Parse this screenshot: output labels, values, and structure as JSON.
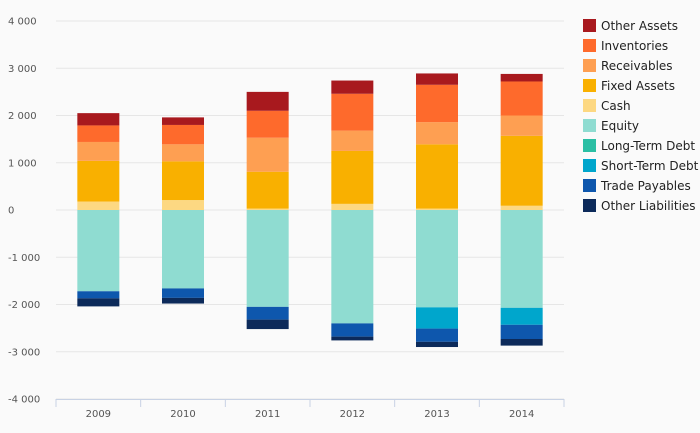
{
  "chart_data": {
    "type": "bar",
    "stacked": true,
    "categories": [
      "2009",
      "2010",
      "2011",
      "2012",
      "2013",
      "2014"
    ],
    "y_ticks": [
      "4 000",
      "3 000",
      "2 000",
      "1 000",
      "0",
      "-1 000",
      "-2 000",
      "-3 000",
      "-4 000"
    ],
    "ylim": [
      -4000,
      4000
    ],
    "grid": true,
    "legend_position": "right",
    "series": [
      {
        "name": "Cash",
        "color": "#fdd882",
        "values": [
          180,
          210,
          30,
          130,
          30,
          90
        ]
      },
      {
        "name": "Fixed Assets",
        "color": "#f9b000",
        "values": [
          860,
          820,
          780,
          1120,
          1360,
          1480
        ]
      },
      {
        "name": "Receivables",
        "color": "#fe9f52",
        "values": [
          400,
          360,
          720,
          430,
          470,
          430
        ]
      },
      {
        "name": "Inventories",
        "color": "#fe6a2c",
        "values": [
          350,
          410,
          570,
          780,
          790,
          720
        ]
      },
      {
        "name": "Other Assets",
        "color": "#a8191e",
        "values": [
          260,
          160,
          400,
          280,
          240,
          160
        ]
      },
      {
        "name": "Equity",
        "color": "#8fdcd1",
        "values": [
          -1720,
          -1660,
          -2050,
          -2400,
          -2060,
          -2070
        ]
      },
      {
        "name": "Long-Term Debt",
        "color": "#2bbfa4",
        "values": [
          0,
          0,
          0,
          0,
          0,
          0
        ]
      },
      {
        "name": "Short-Term Debt",
        "color": "#00a6cc",
        "values": [
          0,
          0,
          0,
          0,
          -450,
          -360
        ]
      },
      {
        "name": "Trade Payables",
        "color": "#0e57ad",
        "values": [
          -150,
          -200,
          -270,
          -280,
          -280,
          -300
        ]
      },
      {
        "name": "Other Liabilities",
        "color": "#0c2a5a",
        "values": [
          -170,
          -120,
          -200,
          -80,
          -110,
          -140
        ]
      }
    ],
    "legend_order": [
      "Other Assets",
      "Inventories",
      "Receivables",
      "Fixed Assets",
      "Cash",
      "Equity",
      "Long-Term Debt",
      "Short-Term Debt",
      "Trade Payables",
      "Other Liabilities"
    ]
  }
}
